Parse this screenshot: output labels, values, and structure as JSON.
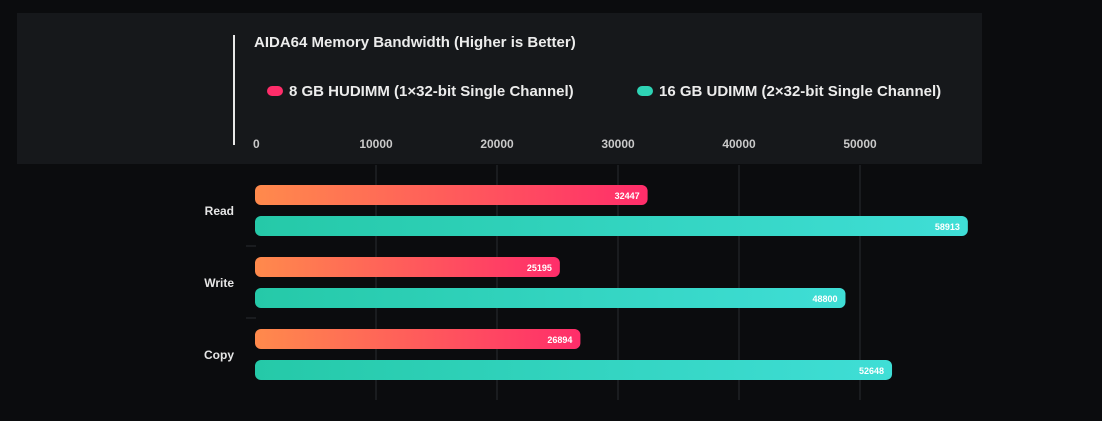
{
  "chart_data": {
    "type": "bar",
    "orientation": "horizontal",
    "title": "AIDA64 Memory Bandwidth (Higher is Better)",
    "categories": [
      "Read",
      "Write",
      "Copy"
    ],
    "series": [
      {
        "name": "8 GB HUDIMM (1×32-bit Single Channel)",
        "values": [
          32447,
          25195,
          26894
        ],
        "color_start": "#ff8a4c",
        "color_end": "#ff2d6a",
        "legend_color": "#ff2d6a"
      },
      {
        "name": "16 GB UDIMM (2×32-bit Single Channel)",
        "values": [
          58913,
          48800,
          52648
        ],
        "color_start": "#25c9a8",
        "color_end": "#3fded6",
        "legend_color": "#2ed3b5"
      }
    ],
    "ticks": [
      0,
      10000,
      20000,
      30000,
      40000,
      50000
    ],
    "xlim": [
      0,
      59000
    ],
    "legend_position": "top",
    "grid": true
  }
}
